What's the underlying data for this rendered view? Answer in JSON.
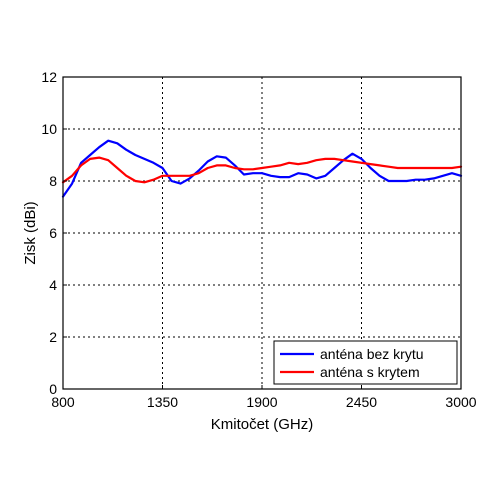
{
  "chart_data": {
    "type": "line",
    "title": "",
    "xlabel": "Kmitočet (GHz)",
    "ylabel": "Zisk (dBi)",
    "xlim": [
      800,
      3000
    ],
    "ylim": [
      0,
      12
    ],
    "x_ticks": [
      800,
      1350,
      1900,
      2450,
      3000
    ],
    "y_ticks": [
      0,
      2,
      4,
      6,
      8,
      10,
      12
    ],
    "grid": true,
    "legend_position": "bottom-right",
    "series": [
      {
        "name": "anténa bez krytu",
        "color": "#0000ff",
        "x": [
          800,
          850,
          900,
          950,
          1000,
          1050,
          1100,
          1150,
          1200,
          1250,
          1300,
          1350,
          1400,
          1450,
          1500,
          1550,
          1600,
          1650,
          1700,
          1750,
          1800,
          1850,
          1900,
          1950,
          2000,
          2050,
          2100,
          2150,
          2200,
          2250,
          2300,
          2350,
          2400,
          2450,
          2500,
          2550,
          2600,
          2650,
          2700,
          2750,
          2800,
          2850,
          2900,
          2950,
          3000
        ],
        "y": [
          7.4,
          7.9,
          8.7,
          9.0,
          9.3,
          9.55,
          9.45,
          9.2,
          9.0,
          8.85,
          8.7,
          8.5,
          8.0,
          7.9,
          8.1,
          8.4,
          8.75,
          8.95,
          8.9,
          8.6,
          8.25,
          8.3,
          8.3,
          8.2,
          8.15,
          8.15,
          8.3,
          8.25,
          8.1,
          8.2,
          8.5,
          8.8,
          9.05,
          8.85,
          8.5,
          8.2,
          8.0,
          8.0,
          8.0,
          8.05,
          8.05,
          8.1,
          8.2,
          8.3,
          8.2
        ]
      },
      {
        "name": "anténa s krytem",
        "color": "#ff0000",
        "x": [
          800,
          850,
          900,
          950,
          1000,
          1050,
          1100,
          1150,
          1200,
          1250,
          1300,
          1350,
          1400,
          1450,
          1500,
          1550,
          1600,
          1650,
          1700,
          1750,
          1800,
          1850,
          1900,
          1950,
          2000,
          2050,
          2100,
          2150,
          2200,
          2250,
          2300,
          2350,
          2400,
          2450,
          2500,
          2550,
          2600,
          2650,
          2700,
          2750,
          2800,
          2850,
          2900,
          2950,
          3000
        ],
        "y": [
          7.95,
          8.2,
          8.6,
          8.85,
          8.9,
          8.8,
          8.5,
          8.2,
          8.0,
          7.95,
          8.05,
          8.2,
          8.2,
          8.2,
          8.2,
          8.3,
          8.5,
          8.6,
          8.6,
          8.5,
          8.45,
          8.45,
          8.5,
          8.55,
          8.6,
          8.7,
          8.65,
          8.7,
          8.8,
          8.85,
          8.85,
          8.8,
          8.75,
          8.7,
          8.65,
          8.6,
          8.55,
          8.5,
          8.5,
          8.5,
          8.5,
          8.5,
          8.5,
          8.5,
          8.55
        ]
      }
    ]
  }
}
